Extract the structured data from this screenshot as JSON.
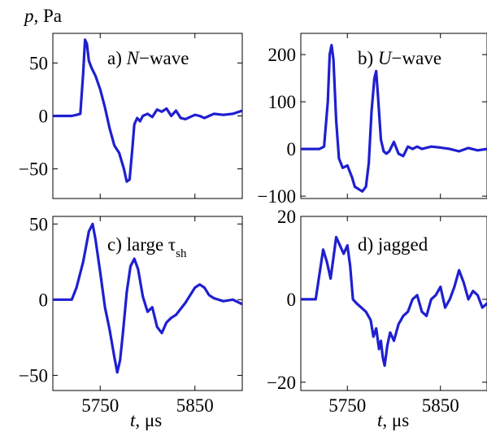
{
  "figure": {
    "ylabel_text": "p",
    "ylabel_unit": ", Pa",
    "xlabel_text": "t",
    "xlabel_unit": ", μs",
    "line_color": "#1f1fd0"
  },
  "chart_data": [
    {
      "type": "line",
      "panel": "a",
      "label_prefix": "a) ",
      "label_main": "N",
      "label_suffix": "−wave",
      "xlim": [
        5700,
        5900
      ],
      "ylim": [
        -78,
        78
      ],
      "yticks": [
        -50,
        0,
        50
      ],
      "ytick_labels": [
        "−50",
        "0",
        "50"
      ],
      "xticks": [
        5750,
        5850
      ],
      "xtick_labels": [],
      "series": [
        {
          "x": [
            5700,
            5710,
            5720,
            5725,
            5729,
            5732,
            5734,
            5736,
            5738,
            5741,
            5745,
            5750,
            5755,
            5760,
            5765,
            5770,
            5775,
            5778,
            5781,
            5784,
            5786,
            5789,
            5792,
            5795,
            5800,
            5805,
            5810,
            5815,
            5820,
            5825,
            5830,
            5835,
            5840,
            5845,
            5850,
            5855,
            5860,
            5865,
            5870,
            5880,
            5890,
            5900
          ],
          "y": [
            0,
            0,
            0,
            1,
            2,
            40,
            72,
            68,
            52,
            45,
            38,
            25,
            8,
            -12,
            -28,
            -35,
            -50,
            -62,
            -60,
            -30,
            -8,
            -2,
            -5,
            0,
            2,
            -1,
            6,
            4,
            7,
            0,
            5,
            -2,
            -3,
            -1,
            1,
            0,
            -2,
            0,
            2,
            1,
            2,
            5
          ]
        }
      ]
    },
    {
      "type": "line",
      "panel": "b",
      "label_prefix": "b) ",
      "label_main": "U",
      "label_suffix": "−wave",
      "xlim": [
        5700,
        5900
      ],
      "ylim": [
        -105,
        245
      ],
      "yticks": [
        -100,
        0,
        100,
        200
      ],
      "ytick_labels": [
        "−100",
        "0",
        "100",
        "200"
      ],
      "xticks": [
        5750,
        5850
      ],
      "xtick_labels": [],
      "series": [
        {
          "x": [
            5700,
            5710,
            5720,
            5725,
            5729,
            5731,
            5733,
            5735,
            5738,
            5741,
            5745,
            5750,
            5755,
            5758,
            5762,
            5766,
            5770,
            5773,
            5776,
            5779,
            5781,
            5783,
            5786,
            5789,
            5792,
            5795,
            5800,
            5805,
            5810,
            5815,
            5820,
            5825,
            5830,
            5840,
            5850,
            5860,
            5870,
            5880,
            5890,
            5900
          ],
          "y": [
            0,
            0,
            0,
            5,
            100,
            200,
            220,
            190,
            60,
            -20,
            -40,
            -35,
            -60,
            -80,
            -85,
            -90,
            -80,
            -30,
            80,
            150,
            165,
            110,
            20,
            -5,
            -10,
            -5,
            15,
            -10,
            -15,
            5,
            0,
            5,
            0,
            5,
            3,
            0,
            -5,
            2,
            -3,
            0
          ]
        }
      ]
    },
    {
      "type": "line",
      "panel": "c",
      "label_prefix": "c) large τ",
      "label_sub": "sh",
      "xlim": [
        5700,
        5900
      ],
      "ylim": [
        -60,
        55
      ],
      "yticks": [
        -50,
        0,
        50
      ],
      "ytick_labels": [
        "−50",
        "0",
        "50"
      ],
      "xticks": [
        5750,
        5850
      ],
      "xtick_labels": [
        "5750",
        "5850"
      ],
      "series": [
        {
          "x": [
            5700,
            5710,
            5720,
            5725,
            5732,
            5738,
            5742,
            5745,
            5750,
            5755,
            5760,
            5765,
            5768,
            5771,
            5774,
            5778,
            5782,
            5786,
            5790,
            5795,
            5800,
            5805,
            5810,
            5815,
            5820,
            5825,
            5830,
            5840,
            5845,
            5850,
            5855,
            5860,
            5865,
            5870,
            5880,
            5890,
            5900
          ],
          "y": [
            0,
            0,
            0,
            8,
            25,
            45,
            50,
            40,
            18,
            -5,
            -20,
            -38,
            -48,
            -40,
            -22,
            5,
            22,
            27,
            20,
            2,
            -8,
            -5,
            -18,
            -22,
            -15,
            -12,
            -10,
            -2,
            3,
            8,
            10,
            8,
            3,
            1,
            -1,
            0,
            -3
          ]
        }
      ]
    },
    {
      "type": "line",
      "panel": "d",
      "label_prefix": "d) jagged",
      "xlim": [
        5700,
        5900
      ],
      "ylim": [
        -22,
        20
      ],
      "yticks": [
        -20,
        0,
        20
      ],
      "ytick_labels": [
        "−20",
        "0",
        "20"
      ],
      "xticks": [
        5750,
        5850
      ],
      "xtick_labels": [
        "5750",
        "5850"
      ],
      "series": [
        {
          "x": [
            5700,
            5710,
            5716,
            5720,
            5724,
            5728,
            5732,
            5735,
            5738,
            5742,
            5746,
            5750,
            5753,
            5756,
            5760,
            5765,
            5770,
            5775,
            5778,
            5781,
            5784,
            5786,
            5788,
            5790,
            5793,
            5796,
            5800,
            5805,
            5810,
            5815,
            5820,
            5825,
            5830,
            5835,
            5840,
            5845,
            5850,
            5855,
            5860,
            5865,
            5870,
            5875,
            5880,
            5885,
            5890,
            5895,
            5900
          ],
          "y": [
            0,
            0,
            0,
            6,
            12,
            9,
            5,
            10,
            15,
            13,
            11,
            13,
            8,
            0,
            -1,
            -2,
            -3,
            -5,
            -9,
            -7,
            -12,
            -10,
            -14,
            -16,
            -11,
            -8,
            -10,
            -6,
            -4,
            -3,
            0,
            1,
            -3,
            -4,
            0,
            1,
            3,
            -2,
            0,
            3,
            7,
            4,
            0,
            2,
            1,
            -2,
            -1
          ]
        }
      ]
    }
  ]
}
